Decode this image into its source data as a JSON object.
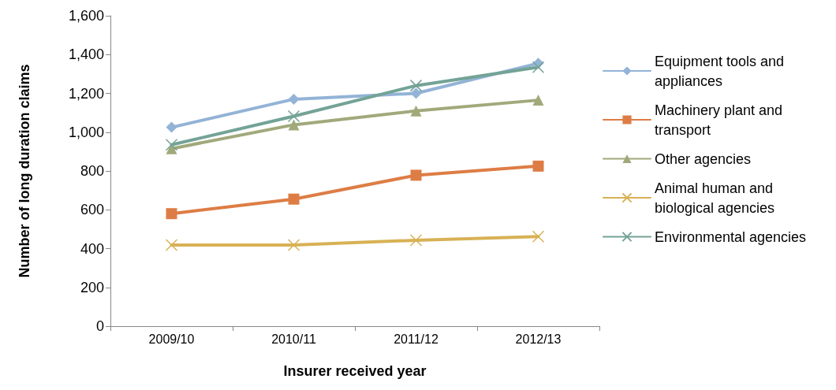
{
  "chart_data": {
    "type": "line",
    "xlabel": "Insurer received year",
    "ylabel": "Number of long duration claims",
    "categories": [
      "2009/10",
      "2010/11",
      "2011/12",
      "2012/13"
    ],
    "series": [
      {
        "name": "Equipment tools and appliances",
        "color": "#93b3d7",
        "marker": "diamond",
        "values": [
          1025,
          1170,
          1200,
          1355
        ]
      },
      {
        "name": "Machinery plant and transport",
        "color": "#dd7d45",
        "marker": "square",
        "values": [
          580,
          655,
          778,
          825
        ]
      },
      {
        "name": "Other agencies",
        "color": "#a1a97b",
        "marker": "triangle",
        "values": [
          915,
          1038,
          1110,
          1165
        ]
      },
      {
        "name": "Animal human and biological agencies",
        "color": "#d8b155",
        "marker": "cross",
        "values": [
          418,
          418,
          443,
          462
        ]
      },
      {
        "name": "Environmental agencies",
        "color": "#73a396",
        "marker": "cross",
        "values": [
          935,
          1082,
          1240,
          1335
        ]
      }
    ],
    "ylim": [
      0,
      1600
    ],
    "yticks": [
      0,
      200,
      400,
      600,
      800,
      {
        "value": 1000,
        "label": "1,000"
      },
      {
        "value": 1200,
        "label": "1,200"
      },
      {
        "value": 1400,
        "label": "1,400"
      },
      {
        "value": 1600,
        "label": "1,600"
      }
    ],
    "grid": false,
    "legend": "right",
    "line_style": "solid"
  }
}
